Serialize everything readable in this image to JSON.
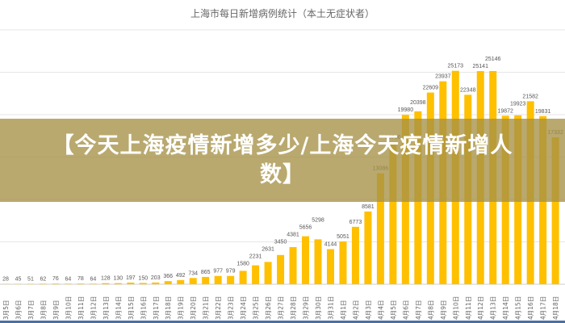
{
  "banner": {
    "title": "【今天上海疫情新增多少/上海今天疫情新增人数】"
  },
  "chart_data": {
    "type": "bar",
    "title": "上海市每日新增病例统计（本土无症状者）",
    "categories": [
      "3月5日",
      "3月6日",
      "3月7日",
      "3月8日",
      "3月9日",
      "3月10日",
      "3月11日",
      "3月12日",
      "3月13日",
      "3月14日",
      "3月15日",
      "3月16日",
      "3月17日",
      "3月18日",
      "3月19日",
      "3月20日",
      "3月21日",
      "3月22日",
      "3月23日",
      "3月24日",
      "3月25日",
      "3月26日",
      "3月27日",
      "3月28日",
      "3月29日",
      "3月30日",
      "3月31日",
      "4月1日",
      "4月2日",
      "4月3日",
      "4月4日",
      "4月5日",
      "4月6日",
      "4月7日",
      "4月8日",
      "4月9日",
      "4月10日",
      "4月11日",
      "4月12日",
      "4月13日",
      "4月14日",
      "4月15日",
      "4月16日",
      "4月17日",
      "4月18日"
    ],
    "values": [
      28,
      45,
      51,
      62,
      76,
      64,
      78,
      64,
      128,
      130,
      197,
      150,
      203,
      366,
      492,
      734,
      865,
      977,
      979,
      1580,
      2231,
      2631,
      3450,
      4381,
      5656,
      5298,
      4144,
      5051,
      6773,
      8581,
      13086,
      16766,
      19980,
      20398,
      22609,
      23937,
      25173,
      22348,
      25141,
      25146,
      19872,
      19923,
      21582,
      19831,
      17332
    ],
    "ylim": [
      0,
      30000
    ],
    "grid": true,
    "bar_color": "#FFC000"
  }
}
